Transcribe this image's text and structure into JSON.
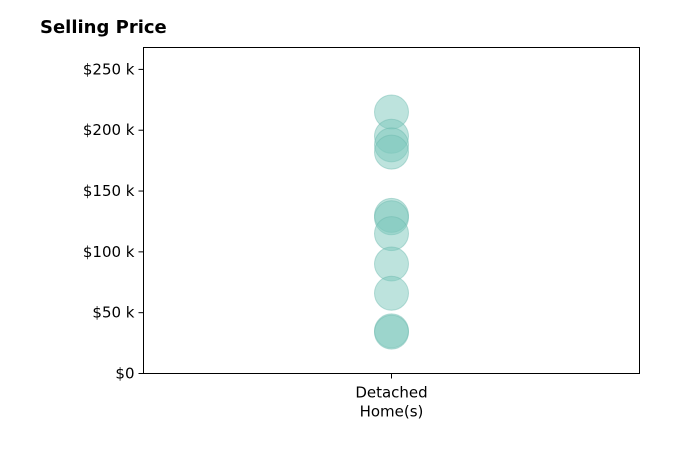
{
  "chart_data": {
    "type": "scatter",
    "title": "Selling Price",
    "xlabel": "",
    "ylabel": "",
    "categories": [
      "Detached\nHome(s)"
    ],
    "y_tick_labels": [
      "$0",
      "$50 k",
      "$100 k",
      "$150 k",
      "$200 k",
      "$250 k"
    ],
    "y_tick_values": [
      0,
      50000,
      100000,
      150000,
      200000,
      250000
    ],
    "ylim": [
      0,
      268000
    ],
    "grid": false,
    "series": [
      {
        "category": "Detached\nHome(s)",
        "values": [
          215000,
          195000,
          188000,
          182000,
          130000,
          128000,
          115000,
          90000,
          66000,
          35000,
          34000
        ]
      }
    ],
    "marker_color": "#7cc8bc",
    "marker_opacity": 0.5,
    "marker_edge_color": "#6bb8ac"
  }
}
